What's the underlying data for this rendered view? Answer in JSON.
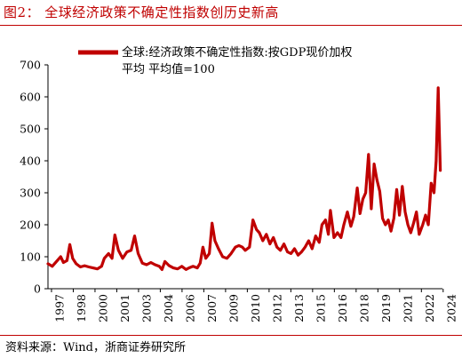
{
  "header": {
    "title": "图2：  全球经济政策不确定性指数创历史新高"
  },
  "footer": {
    "source": "资料来源：Wind，浙商证券研究所"
  },
  "chart_data": {
    "type": "line",
    "title": "",
    "xlabel": "",
    "ylabel": "",
    "ylim": [
      0,
      700
    ],
    "yticks": [
      0,
      100,
      200,
      300,
      400,
      500,
      600,
      700
    ],
    "xticks": [
      "1997",
      "1998",
      "2000",
      "2001",
      "2003",
      "2004",
      "2006",
      "2007",
      "2009",
      "2010",
      "2012",
      "2013",
      "2015",
      "2016",
      "2018",
      "2019",
      "2021",
      "2022",
      "2024"
    ],
    "grid": false,
    "legend_position": "top",
    "legend_lines": [
      "全球:经济政策不确定性指数:按GDP现价加权",
      "平均 平均值=100"
    ],
    "series": [
      {
        "name": "全球:经济政策不确定性指数:按GDP现价加权 平均 平均值=100",
        "color": "#C00000",
        "points": [
          [
            1997.0,
            78
          ],
          [
            1997.3,
            70
          ],
          [
            1997.6,
            85
          ],
          [
            1997.9,
            100
          ],
          [
            1998.1,
            82
          ],
          [
            1998.35,
            88
          ],
          [
            1998.55,
            138
          ],
          [
            1998.75,
            95
          ],
          [
            1999.0,
            78
          ],
          [
            1999.3,
            68
          ],
          [
            1999.6,
            72
          ],
          [
            1999.9,
            68
          ],
          [
            2000.2,
            65
          ],
          [
            2000.5,
            62
          ],
          [
            2000.8,
            70
          ],
          [
            2001.0,
            95
          ],
          [
            2001.3,
            110
          ],
          [
            2001.55,
            95
          ],
          [
            2001.75,
            168
          ],
          [
            2002.0,
            120
          ],
          [
            2002.3,
            95
          ],
          [
            2002.6,
            115
          ],
          [
            2002.9,
            120
          ],
          [
            2003.15,
            165
          ],
          [
            2003.4,
            110
          ],
          [
            2003.7,
            80
          ],
          [
            2004.0,
            75
          ],
          [
            2004.3,
            82
          ],
          [
            2004.6,
            75
          ],
          [
            2004.9,
            70
          ],
          [
            2005.1,
            60
          ],
          [
            2005.3,
            85
          ],
          [
            2005.6,
            72
          ],
          [
            2005.9,
            65
          ],
          [
            2006.2,
            62
          ],
          [
            2006.5,
            70
          ],
          [
            2006.8,
            60
          ],
          [
            2007.0,
            65
          ],
          [
            2007.3,
            70
          ],
          [
            2007.6,
            65
          ],
          [
            2007.8,
            80
          ],
          [
            2008.0,
            130
          ],
          [
            2008.2,
            95
          ],
          [
            2008.45,
            110
          ],
          [
            2008.65,
            205
          ],
          [
            2008.85,
            150
          ],
          [
            2009.1,
            125
          ],
          [
            2009.4,
            100
          ],
          [
            2009.7,
            95
          ],
          [
            2010.0,
            110
          ],
          [
            2010.3,
            130
          ],
          [
            2010.55,
            135
          ],
          [
            2010.8,
            130
          ],
          [
            2011.0,
            120
          ],
          [
            2011.3,
            130
          ],
          [
            2011.55,
            215
          ],
          [
            2011.8,
            185
          ],
          [
            2012.0,
            175
          ],
          [
            2012.25,
            150
          ],
          [
            2012.5,
            170
          ],
          [
            2012.75,
            140
          ],
          [
            2013.0,
            160
          ],
          [
            2013.25,
            130
          ],
          [
            2013.5,
            120
          ],
          [
            2013.75,
            140
          ],
          [
            2014.0,
            115
          ],
          [
            2014.25,
            110
          ],
          [
            2014.5,
            125
          ],
          [
            2014.75,
            105
          ],
          [
            2015.0,
            115
          ],
          [
            2015.25,
            130
          ],
          [
            2015.5,
            150
          ],
          [
            2015.75,
            125
          ],
          [
            2016.0,
            165
          ],
          [
            2016.25,
            145
          ],
          [
            2016.45,
            200
          ],
          [
            2016.7,
            215
          ],
          [
            2016.9,
            170
          ],
          [
            2017.05,
            245
          ],
          [
            2017.3,
            160
          ],
          [
            2017.55,
            175
          ],
          [
            2017.8,
            160
          ],
          [
            2018.0,
            200
          ],
          [
            2018.25,
            240
          ],
          [
            2018.5,
            195
          ],
          [
            2018.7,
            225
          ],
          [
            2018.95,
            315
          ],
          [
            2019.15,
            235
          ],
          [
            2019.35,
            280
          ],
          [
            2019.55,
            300
          ],
          [
            2019.75,
            420
          ],
          [
            2019.95,
            250
          ],
          [
            2020.15,
            390
          ],
          [
            2020.35,
            340
          ],
          [
            2020.55,
            305
          ],
          [
            2020.75,
            220
          ],
          [
            2020.95,
            200
          ],
          [
            2021.15,
            215
          ],
          [
            2021.35,
            180
          ],
          [
            2021.55,
            220
          ],
          [
            2021.75,
            310
          ],
          [
            2021.95,
            230
          ],
          [
            2022.15,
            320
          ],
          [
            2022.35,
            240
          ],
          [
            2022.55,
            200
          ],
          [
            2022.75,
            175
          ],
          [
            2022.95,
            205
          ],
          [
            2023.15,
            240
          ],
          [
            2023.35,
            170
          ],
          [
            2023.6,
            200
          ],
          [
            2023.8,
            230
          ],
          [
            2024.0,
            200
          ],
          [
            2024.2,
            330
          ],
          [
            2024.4,
            300
          ],
          [
            2024.55,
            400
          ],
          [
            2024.7,
            628
          ],
          [
            2024.85,
            370
          ]
        ]
      }
    ]
  }
}
